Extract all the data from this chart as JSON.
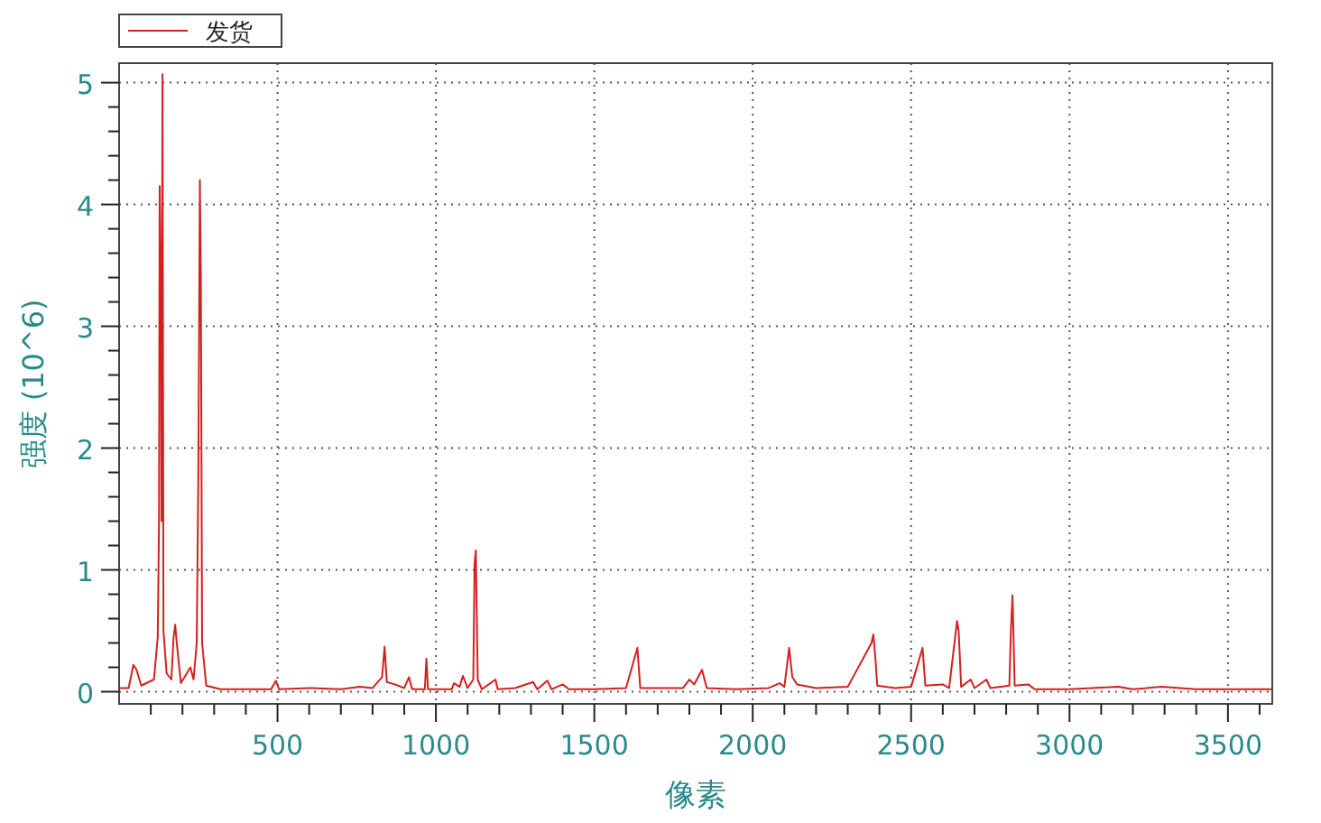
{
  "chart_data": {
    "type": "line",
    "xlabel": "像素",
    "ylabel": "强度 (10^6)",
    "legend": "top left",
    "grid": true,
    "line_style": "dotted",
    "xlim": [
      0,
      3640
    ],
    "ylim": [
      -0.1,
      5.16
    ],
    "xticks": [
      {
        "value": 100,
        "label": null
      },
      {
        "value": 200,
        "label": null
      },
      {
        "value": 300,
        "label": null
      },
      {
        "value": 400,
        "label": null
      },
      500,
      {
        "value": 600,
        "label": null
      },
      {
        "value": 700,
        "label": null
      },
      {
        "value": 800,
        "label": null
      },
      {
        "value": 900,
        "label": null
      },
      1000,
      {
        "value": 1100,
        "label": null
      },
      {
        "value": 1200,
        "label": null
      },
      {
        "value": 1300,
        "label": null
      },
      {
        "value": 1400,
        "label": null
      },
      1500,
      {
        "value": 1600,
        "label": null
      },
      {
        "value": 1700,
        "label": null
      },
      {
        "value": 1800,
        "label": null
      },
      {
        "value": 1900,
        "label": null
      },
      2000,
      {
        "value": 2100,
        "label": null
      },
      {
        "value": 2200,
        "label": null
      },
      {
        "value": 2300,
        "label": null
      },
      {
        "value": 2400,
        "label": null
      },
      2500,
      {
        "value": 2600,
        "label": null
      },
      {
        "value": 2700,
        "label": null
      },
      {
        "value": 2800,
        "label": null
      },
      {
        "value": 2900,
        "label": null
      },
      3000,
      {
        "value": 3100,
        "label": null
      },
      {
        "value": 3200,
        "label": null
      },
      {
        "value": 3300,
        "label": null
      },
      {
        "value": 3400,
        "label": null
      },
      3500,
      {
        "value": 3600,
        "label": null
      }
    ],
    "yticks": [
      0,
      {
        "value": 0.2,
        "label": null
      },
      {
        "value": 0.4,
        "label": null
      },
      {
        "value": 0.6,
        "label": null
      },
      {
        "value": 0.8,
        "label": null
      },
      1,
      {
        "value": 1.2,
        "label": null
      },
      {
        "value": 1.4,
        "label": null
      },
      {
        "value": 1.6,
        "label": null
      },
      {
        "value": 1.8,
        "label": null
      },
      2,
      {
        "value": 2.2,
        "label": null
      },
      {
        "value": 2.4,
        "label": null
      },
      {
        "value": 2.6,
        "label": null
      },
      {
        "value": 2.8,
        "label": null
      },
      3,
      {
        "value": 3.2,
        "label": null
      },
      {
        "value": 3.4,
        "label": null
      },
      {
        "value": 3.6,
        "label": null
      },
      {
        "value": 3.8,
        "label": null
      },
      4,
      {
        "value": 4.2,
        "label": null
      },
      {
        "value": 4.4,
        "label": null
      },
      {
        "value": 4.6,
        "label": null
      },
      {
        "value": 4.8,
        "label": null
      },
      5
    ],
    "series": [
      {
        "name": "发货",
        "color": "#d42020",
        "line_style": "solid",
        "x": [
          0,
          30,
          45,
          55,
          70,
          110,
          122,
          126,
          128,
          132,
          134,
          137,
          140,
          150,
          165,
          172,
          177,
          182,
          195,
          225,
          235,
          245,
          250,
          255,
          258,
          262,
          275,
          320,
          400,
          480,
          495,
          505,
          600,
          610,
          700,
          760,
          800,
          830,
          838,
          845,
          870,
          900,
          915,
          925,
          965,
          970,
          975,
          1050,
          1057,
          1075,
          1085,
          1100,
          1118,
          1122,
          1126,
          1132,
          1145,
          1188,
          1195,
          1250,
          1307,
          1320,
          1352,
          1365,
          1400,
          1420,
          1500,
          1600,
          1636,
          1645,
          1700,
          1780,
          1800,
          1815,
          1840,
          1855,
          1950,
          2050,
          2085,
          2100,
          2115,
          2125,
          2140,
          2200,
          2300,
          2375,
          2381,
          2388,
          2393,
          2450,
          2500,
          2536,
          2545,
          2600,
          2620,
          2645,
          2650,
          2658,
          2688,
          2700,
          2738,
          2750,
          2810,
          2815,
          2820,
          2827,
          2870,
          2890,
          3000,
          3153,
          3200,
          3290,
          3400,
          3550,
          3640
        ],
        "values": [
          0.03,
          0.03,
          0.22,
          0.18,
          0.05,
          0.1,
          0.45,
          1.4,
          4.15,
          3.2,
          1.4,
          5.07,
          0.5,
          0.15,
          0.1,
          0.45,
          0.55,
          0.4,
          0.07,
          0.2,
          0.1,
          0.4,
          1.75,
          4.2,
          3.4,
          0.4,
          0.05,
          0.02,
          0.02,
          0.02,
          0.09,
          0.02,
          0.03,
          0.03,
          0.02,
          0.04,
          0.03,
          0.12,
          0.37,
          0.08,
          0.06,
          0.03,
          0.12,
          0.02,
          0.02,
          0.27,
          0.02,
          0.02,
          0.07,
          0.04,
          0.13,
          0.03,
          0.1,
          1.05,
          1.16,
          0.1,
          0.02,
          0.1,
          0.02,
          0.03,
          0.08,
          0.02,
          0.09,
          0.02,
          0.06,
          0.02,
          0.02,
          0.03,
          0.36,
          0.03,
          0.03,
          0.03,
          0.1,
          0.06,
          0.18,
          0.03,
          0.02,
          0.03,
          0.07,
          0.04,
          0.36,
          0.12,
          0.06,
          0.03,
          0.04,
          0.4,
          0.47,
          0.25,
          0.05,
          0.03,
          0.04,
          0.36,
          0.05,
          0.06,
          0.03,
          0.58,
          0.5,
          0.04,
          0.1,
          0.03,
          0.1,
          0.03,
          0.05,
          0.5,
          0.79,
          0.05,
          0.06,
          0.02,
          0.02,
          0.04,
          0.02,
          0.04,
          0.02,
          0.02,
          0.02
        ]
      }
    ]
  }
}
